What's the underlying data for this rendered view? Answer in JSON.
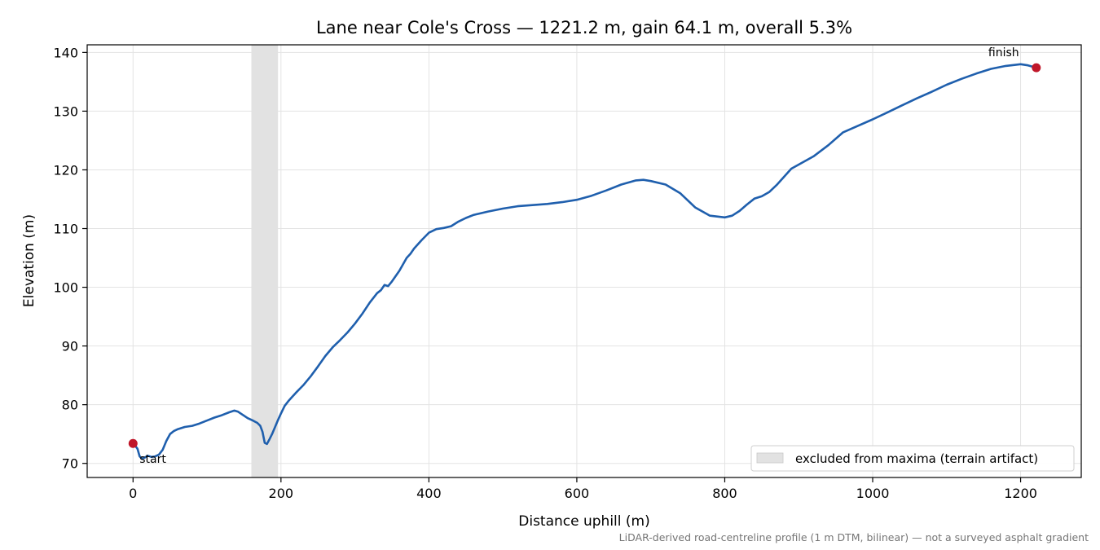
{
  "chart_data": {
    "type": "line",
    "title": "Lane near Cole's Cross — 1221.2 m, gain 64.1 m, overall 5.3%",
    "xlabel": "Distance uphill (m)",
    "ylabel": "Elevation (m)",
    "xlim": [
      -62,
      1282
    ],
    "ylim": [
      67.6,
      141.3
    ],
    "xticks": [
      0,
      200,
      400,
      600,
      800,
      1000,
      1200
    ],
    "yticks": [
      70,
      80,
      90,
      100,
      110,
      120,
      130,
      140
    ],
    "grid": true,
    "legend_position": "lower-right",
    "colors": {
      "line": "#1f5fad",
      "marker": "#c0172a",
      "band": "#e2e2e2"
    },
    "excluded_band": {
      "x0": 160,
      "x1": 196,
      "legend": "excluded from maxima (terrain artifact)"
    },
    "series": [
      {
        "x": [
          0,
          3,
          6,
          9,
          12,
          16,
          20,
          25,
          30,
          35,
          40,
          45,
          50,
          55,
          60,
          70,
          80,
          90,
          100,
          110,
          120,
          130,
          137,
          142,
          148,
          155,
          162,
          168,
          172,
          175,
          178,
          181,
          184,
          188,
          192,
          196,
          200,
          205,
          210,
          215,
          220,
          230,
          240,
          250,
          260,
          270,
          280,
          290,
          300,
          310,
          320,
          330,
          335,
          340,
          345,
          350,
          360,
          370,
          375,
          380,
          390,
          400,
          410,
          420,
          430,
          440,
          450,
          460,
          480,
          500,
          520,
          540,
          560,
          580,
          600,
          620,
          640,
          660,
          680,
          690,
          700,
          720,
          740,
          760,
          780,
          800,
          810,
          820,
          830,
          840,
          850,
          860,
          870,
          880,
          890,
          900,
          920,
          940,
          960,
          980,
          1000,
          1020,
          1040,
          1060,
          1080,
          1100,
          1120,
          1140,
          1160,
          1180,
          1200,
          1210,
          1221.2
        ],
        "y": [
          73.4,
          73.0,
          72.5,
          71.2,
          70.8,
          71.0,
          71.3,
          71.1,
          71.2,
          71.5,
          72.3,
          73.8,
          75.0,
          75.5,
          75.8,
          76.2,
          76.4,
          76.8,
          77.3,
          77.8,
          78.2,
          78.7,
          79.0,
          78.8,
          78.3,
          77.7,
          77.3,
          76.9,
          76.4,
          75.4,
          73.5,
          73.3,
          74.0,
          75.0,
          76.2,
          77.4,
          78.5,
          79.8,
          80.6,
          81.3,
          82.0,
          83.3,
          84.8,
          86.5,
          88.3,
          89.8,
          91.0,
          92.3,
          93.8,
          95.5,
          97.4,
          99.0,
          99.5,
          100.4,
          100.2,
          101.0,
          102.8,
          105.0,
          105.7,
          106.6,
          108.0,
          109.3,
          109.9,
          110.1,
          110.4,
          111.2,
          111.8,
          112.3,
          112.9,
          113.4,
          113.8,
          114.0,
          114.2,
          114.5,
          114.9,
          115.6,
          116.5,
          117.5,
          118.2,
          118.3,
          118.1,
          117.5,
          116.0,
          113.6,
          112.2,
          111.9,
          112.2,
          113.0,
          114.1,
          115.1,
          115.5,
          116.2,
          117.4,
          118.8,
          120.2,
          120.9,
          122.3,
          124.2,
          126.4,
          127.5,
          128.6,
          129.8,
          131.0,
          132.2,
          133.3,
          134.5,
          135.5,
          136.4,
          137.2,
          137.7,
          138.0,
          137.8,
          137.4
        ]
      }
    ],
    "annotations": {
      "start": "start",
      "finish": "finish"
    },
    "footnote": "LiDAR-derived road-centreline profile (1 m DTM, bilinear) — not a surveyed asphalt gradient"
  }
}
